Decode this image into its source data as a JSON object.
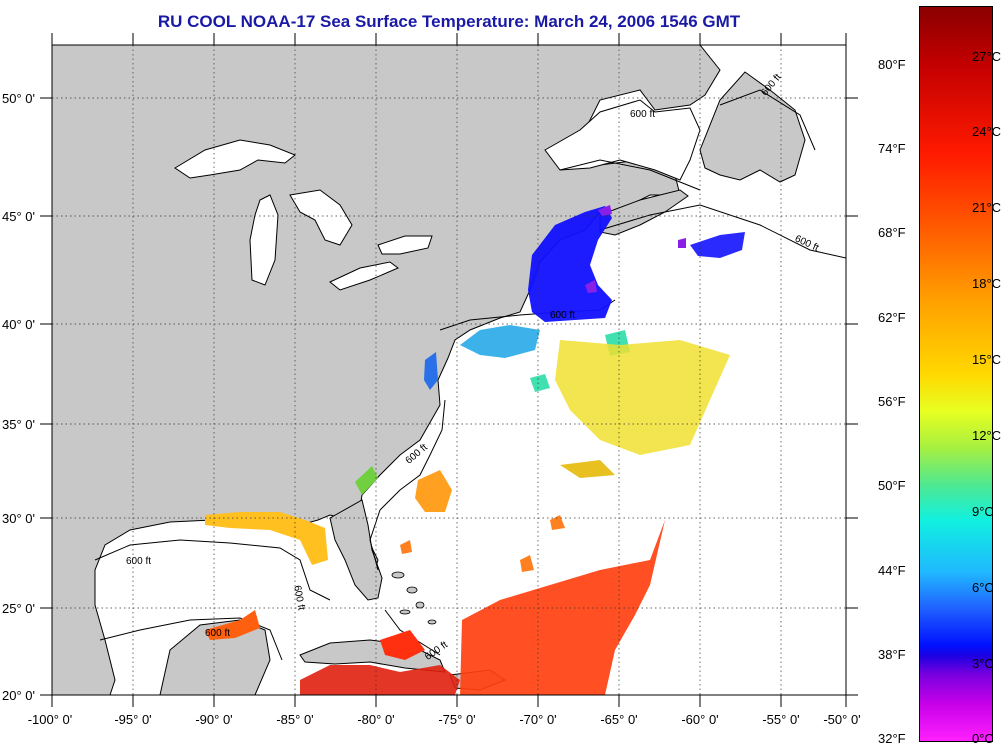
{
  "title": "RU COOL  NOAA-17  Sea Surface Temperature:  March 24, 2006 1546 GMT",
  "map": {
    "extent": {
      "lon": [
        -100,
        -50
      ],
      "lat": [
        20,
        52.5
      ]
    },
    "land_color": "#c8c8c8",
    "ocean_color": "#ffffff",
    "graticule": "dotted",
    "lat_ticks": [
      "50° 0'",
      "45° 0'",
      "40° 0'",
      "35° 0'",
      "30° 0'",
      "25° 0'",
      "20° 0'"
    ],
    "lon_ticks": [
      "-100° 0'",
      "-95° 0'",
      "-90° 0'",
      "-85° 0'",
      "-80° 0'",
      "-75° 0'",
      "-70° 0'",
      "-65° 0'",
      "-60° 0'",
      "-55° 0'",
      "-50° 0'"
    ],
    "isobath_labels": [
      "600 ft",
      "600 ft",
      "600 ft",
      "600 ft",
      "600 ft",
      "600 ft",
      "600 ft",
      "600 ft",
      "600 ft"
    ]
  },
  "colorbar": {
    "fahrenheit": [
      "80°F",
      "74°F",
      "68°F",
      "62°F",
      "56°F",
      "50°F",
      "44°F",
      "38°F",
      "32°F"
    ],
    "celsius": [
      "27°C",
      "24°C",
      "21°C",
      "18°C",
      "15°C",
      "12°C",
      "9°C",
      "6°C",
      "3°C",
      "0°C"
    ],
    "range_c": [
      0,
      29
    ]
  }
}
